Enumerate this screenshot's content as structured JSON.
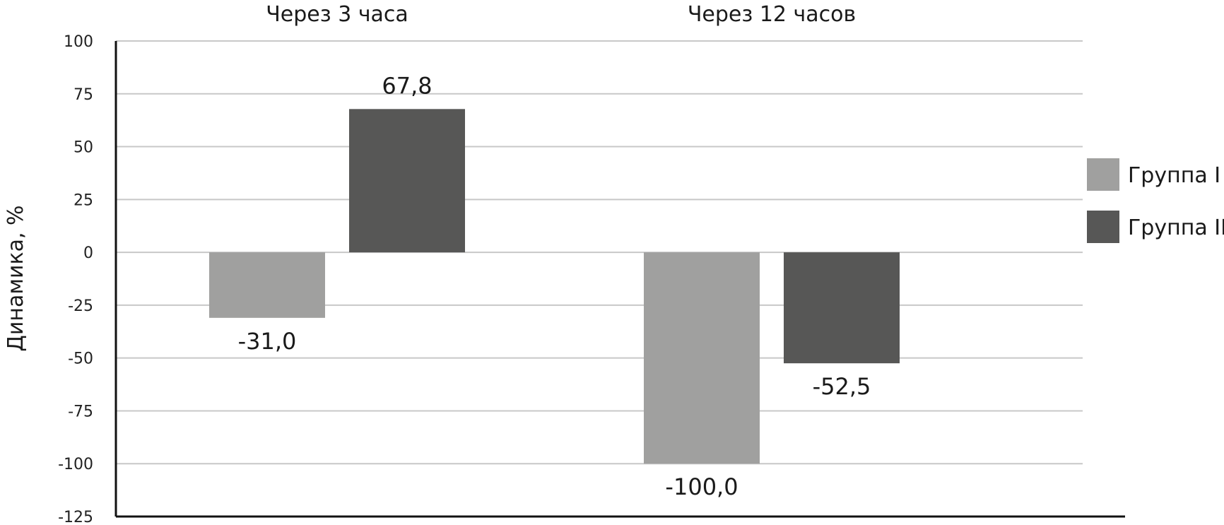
{
  "chart_data": {
    "type": "bar",
    "title": "",
    "xlabel": "",
    "ylabel": "Динамика, %",
    "ylim": [
      -125,
      100
    ],
    "yticks": [
      100,
      75,
      50,
      25,
      0,
      -25,
      -50,
      -75,
      -100,
      -125
    ],
    "ytick_labels": [
      "100",
      "75",
      "50",
      "25",
      "0",
      "-25",
      "-50",
      "-75",
      "-100",
      "-125"
    ],
    "category_axis_position": "top",
    "grid": true,
    "legend_position": "right",
    "categories": [
      "Через 3 часа",
      "Через 12 часов"
    ],
    "series": [
      {
        "name": "Группа I",
        "color": "#a0a09f",
        "values": [
          -31.0,
          -100.0
        ],
        "labels": [
          "-31,0",
          "-100,0"
        ]
      },
      {
        "name": "Группа II",
        "color": "#575756",
        "values": [
          67.8,
          -52.5
        ],
        "labels": [
          "67,8",
          "-52,5"
        ]
      }
    ]
  }
}
